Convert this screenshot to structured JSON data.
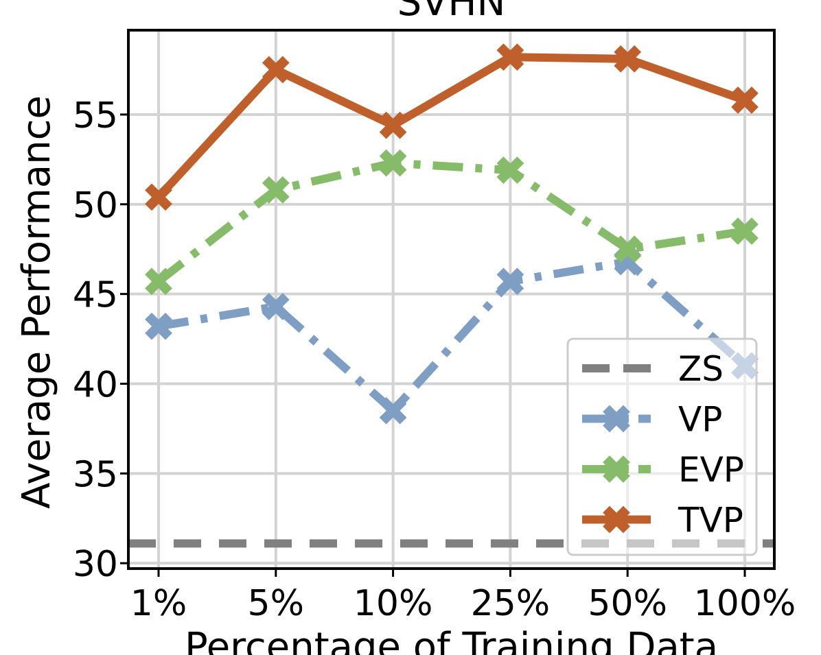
{
  "chart_data": {
    "type": "line",
    "title": "SVHN",
    "xlabel": "Percentage of Training Data",
    "ylabel": "Average Performance",
    "categories": [
      "1%",
      "5%",
      "10%",
      "25%",
      "50%",
      "100%"
    ],
    "ylim": [
      29.7,
      59.7
    ],
    "yticks": [
      30,
      35,
      40,
      45,
      50,
      55
    ],
    "grid": true,
    "legend_position": "bottom-right",
    "reference_line": {
      "name": "ZS",
      "value": 31.1,
      "color": "#808080",
      "style": "dashed"
    },
    "series": [
      {
        "name": "VP",
        "values": [
          43.2,
          44.3,
          38.5,
          45.7,
          46.8,
          41.0
        ],
        "color": "#7f9ec4",
        "style": "dashdot"
      },
      {
        "name": "EVP",
        "values": [
          45.7,
          50.8,
          52.3,
          51.9,
          47.5,
          48.5
        ],
        "color": "#86bb69",
        "style": "dashdot"
      },
      {
        "name": "TVP",
        "values": [
          50.4,
          57.5,
          54.4,
          58.2,
          58.1,
          55.8
        ],
        "color": "#bf5f2b",
        "style": "solid"
      }
    ]
  }
}
